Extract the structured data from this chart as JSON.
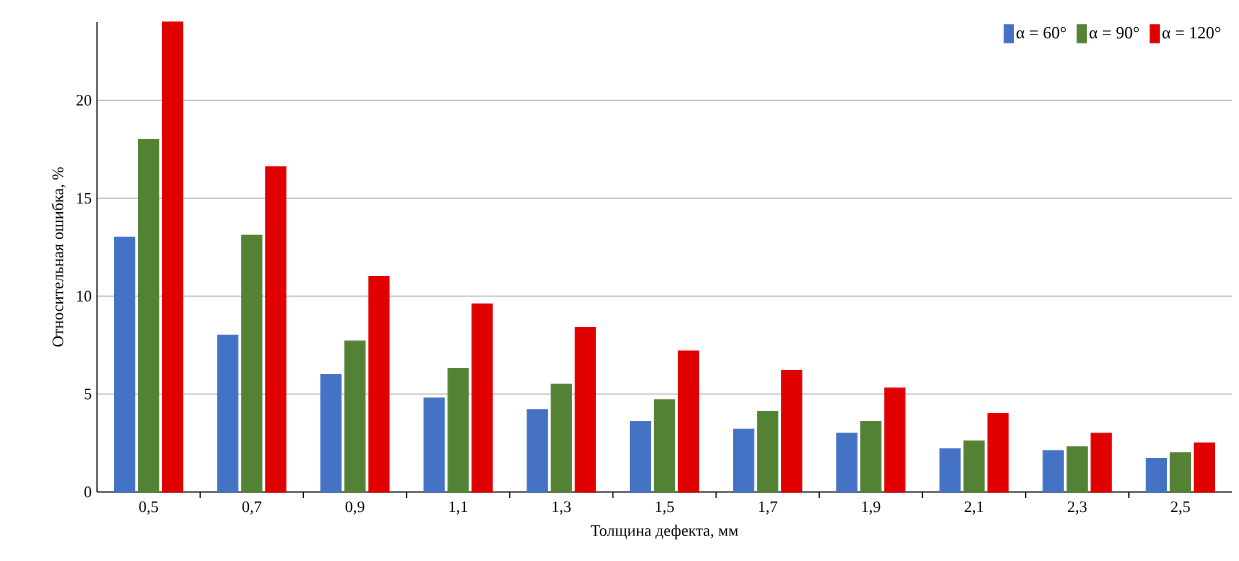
{
  "chart_data": {
    "type": "bar",
    "xlabel": "Толщина дефекта, мм",
    "ylabel": "Относительная ошибка, %",
    "categories": [
      "0,5",
      "0,7",
      "0,9",
      "1,1",
      "1,3",
      "1,5",
      "1,7",
      "1,9",
      "2,1",
      "2,3",
      "2,5"
    ],
    "series": [
      {
        "name": "α = 60°",
        "color": "#4472c4",
        "values": [
          13,
          8,
          6,
          4.8,
          4.2,
          3.6,
          3.2,
          3,
          2.2,
          2.1,
          1.7
        ]
      },
      {
        "name": "α = 90°",
        "color": "#548235",
        "values": [
          18,
          13.1,
          7.7,
          6.3,
          5.5,
          4.7,
          4.1,
          3.6,
          2.6,
          2.3,
          2
        ]
      },
      {
        "name": "α = 120°",
        "color": "#e00000",
        "values": [
          24,
          16.6,
          11,
          9.6,
          8.4,
          7.2,
          6.2,
          5.3,
          4,
          3,
          2.5
        ]
      }
    ],
    "ylim": [
      0,
      24
    ],
    "yticks": [
      0,
      5,
      10,
      15,
      20
    ],
    "grid": "y",
    "legend": "top right"
  }
}
